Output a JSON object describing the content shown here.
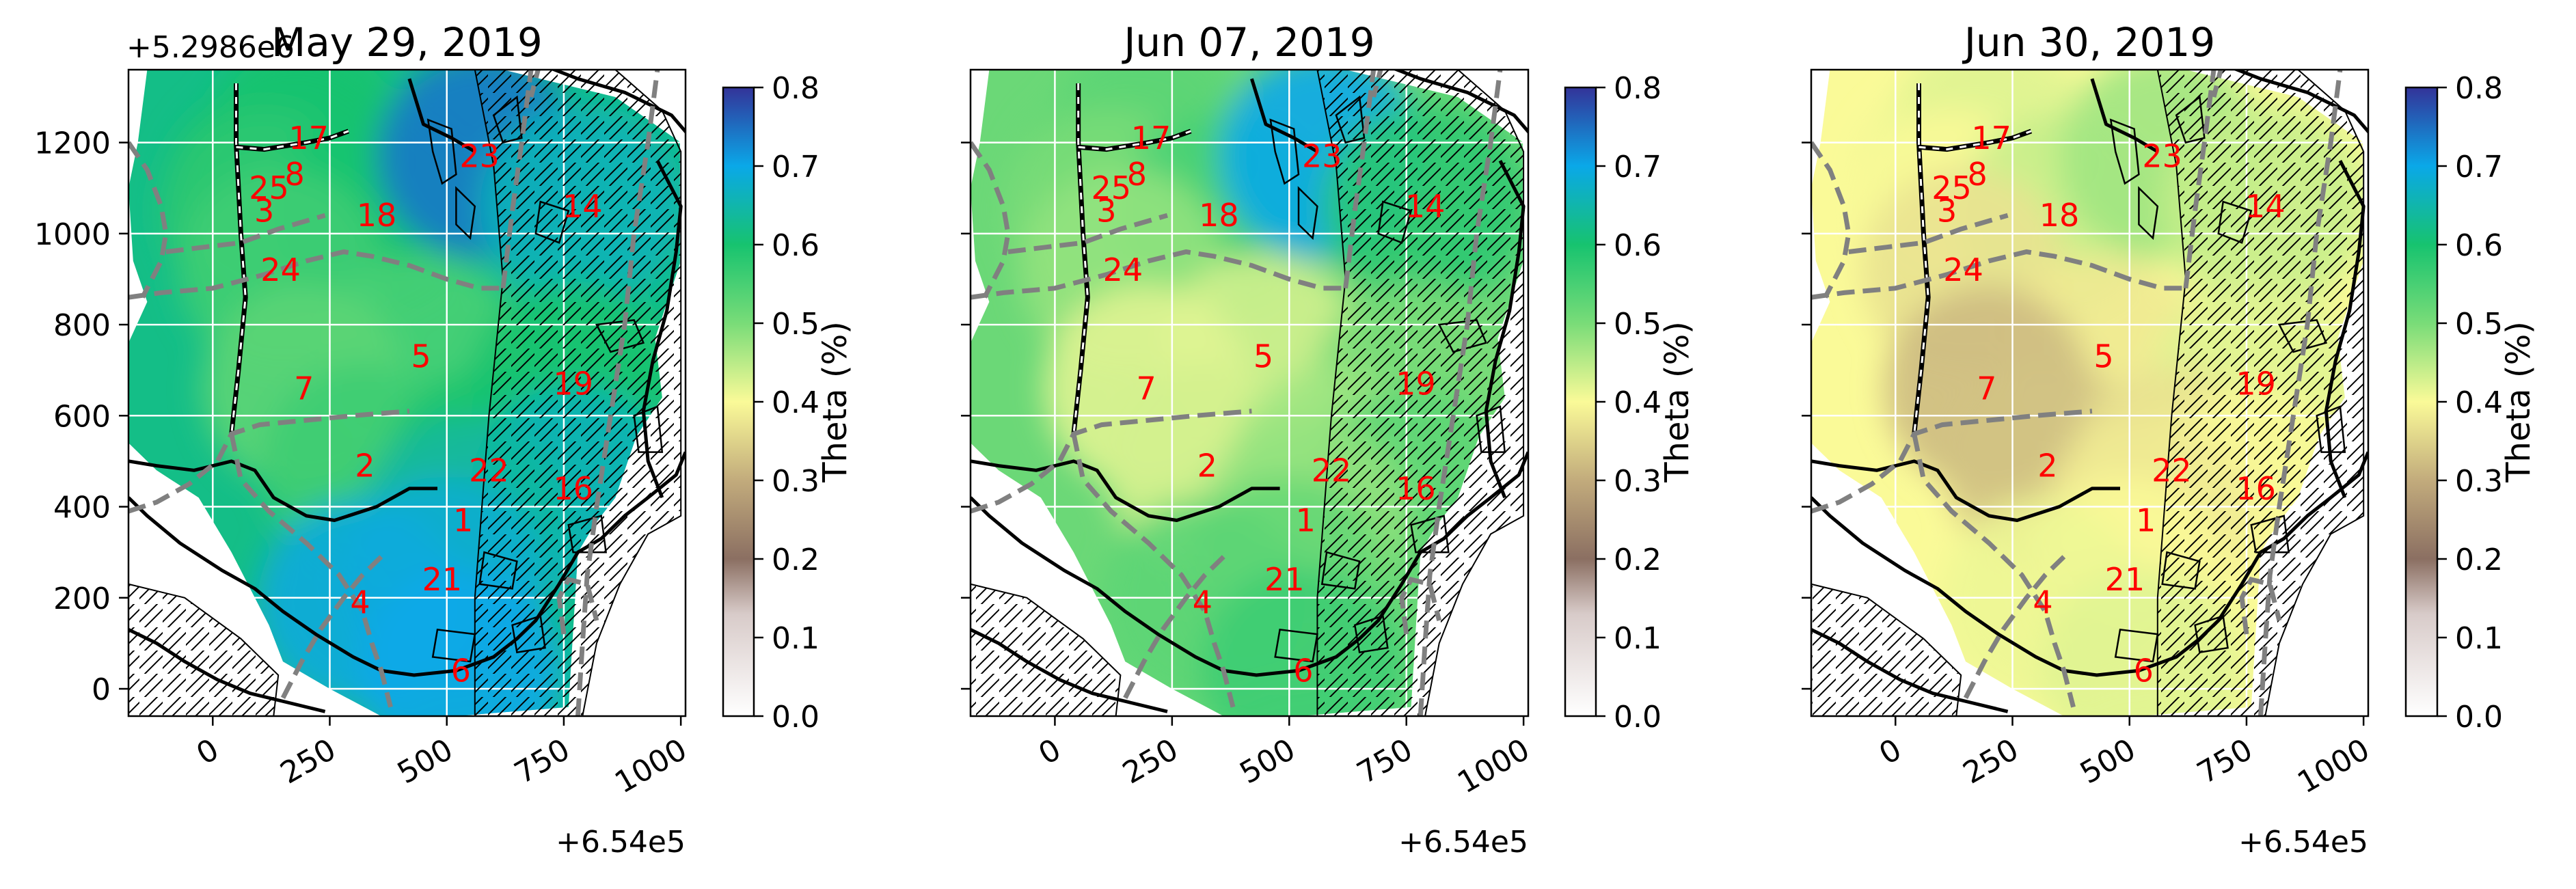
{
  "figure": {
    "offset_y_text": "+5.2986e6",
    "offset_x_text": "+6.54e5"
  },
  "colorbar": {
    "label": "Theta (%)",
    "ticks": [
      "0.0",
      "0.1",
      "0.2",
      "0.3",
      "0.4",
      "0.5",
      "0.6",
      "0.7",
      "0.8"
    ],
    "range": [
      0.0,
      0.8
    ],
    "colormap": "terrain_r",
    "stops": [
      {
        "v": 0.0,
        "color": "#ffffff"
      },
      {
        "v": 0.13,
        "color": "#d8cbc9"
      },
      {
        "v": 0.2,
        "color": "#8b6f62"
      },
      {
        "v": 0.3,
        "color": "#c2ab7c"
      },
      {
        "v": 0.4,
        "color": "#fafa98"
      },
      {
        "v": 0.5,
        "color": "#79dc78"
      },
      {
        "v": 0.6,
        "color": "#17c36f"
      },
      {
        "v": 0.7,
        "color": "#0aa8e8"
      },
      {
        "v": 0.8,
        "color": "#333399"
      }
    ]
  },
  "axes": {
    "x_ticks": [
      "0",
      "250",
      "500",
      "750",
      "1000"
    ],
    "y_ticks": [
      "0",
      "200",
      "400",
      "600",
      "800",
      "1000",
      "1200"
    ],
    "xlim": [
      -180,
      1010
    ],
    "ylim": [
      -60,
      1360
    ],
    "grid": true
  },
  "chart_data": [
    {
      "type": "heatmap",
      "title": "May 29, 2019",
      "sensors": [
        {
          "id": "17",
          "x": 205,
          "y": 1210,
          "theta": 0.6
        },
        {
          "id": "25",
          "x": 120,
          "y": 1100,
          "theta": 0.6
        },
        {
          "id": "8",
          "x": 175,
          "y": 1130,
          "theta": 0.6
        },
        {
          "id": "3",
          "x": 110,
          "y": 1050,
          "theta": 0.58
        },
        {
          "id": "18",
          "x": 350,
          "y": 1040,
          "theta": 0.6
        },
        {
          "id": "23",
          "x": 570,
          "y": 1170,
          "theta": 0.74
        },
        {
          "id": "14",
          "x": 790,
          "y": 1060,
          "theta": 0.66
        },
        {
          "id": "24",
          "x": 145,
          "y": 920,
          "theta": 0.56
        },
        {
          "id": "5",
          "x": 445,
          "y": 730,
          "theta": 0.55
        },
        {
          "id": "7",
          "x": 195,
          "y": 660,
          "theta": 0.53
        },
        {
          "id": "19",
          "x": 770,
          "y": 670,
          "theta": 0.6
        },
        {
          "id": "2",
          "x": 325,
          "y": 490,
          "theta": 0.56
        },
        {
          "id": "22",
          "x": 590,
          "y": 480,
          "theta": 0.6
        },
        {
          "id": "16",
          "x": 770,
          "y": 440,
          "theta": 0.66
        },
        {
          "id": "1",
          "x": 535,
          "y": 370,
          "theta": 0.64
        },
        {
          "id": "21",
          "x": 490,
          "y": 240,
          "theta": 0.68
        },
        {
          "id": "4",
          "x": 315,
          "y": 190,
          "theta": 0.69
        },
        {
          "id": "6",
          "x": 530,
          "y": 40,
          "theta": 0.7
        }
      ]
    },
    {
      "type": "heatmap",
      "title": "Jun 07, 2019",
      "sensors": [
        {
          "id": "17",
          "x": 205,
          "y": 1210,
          "theta": 0.53
        },
        {
          "id": "25",
          "x": 120,
          "y": 1100,
          "theta": 0.52
        },
        {
          "id": "8",
          "x": 175,
          "y": 1130,
          "theta": 0.53
        },
        {
          "id": "3",
          "x": 110,
          "y": 1050,
          "theta": 0.5
        },
        {
          "id": "18",
          "x": 350,
          "y": 1040,
          "theta": 0.55
        },
        {
          "id": "23",
          "x": 570,
          "y": 1170,
          "theta": 0.7
        },
        {
          "id": "14",
          "x": 790,
          "y": 1060,
          "theta": 0.58
        },
        {
          "id": "24",
          "x": 145,
          "y": 920,
          "theta": 0.48
        },
        {
          "id": "5",
          "x": 445,
          "y": 730,
          "theta": 0.43
        },
        {
          "id": "7",
          "x": 195,
          "y": 660,
          "theta": 0.42
        },
        {
          "id": "19",
          "x": 770,
          "y": 670,
          "theta": 0.5
        },
        {
          "id": "2",
          "x": 325,
          "y": 490,
          "theta": 0.43
        },
        {
          "id": "22",
          "x": 590,
          "y": 480,
          "theta": 0.47
        },
        {
          "id": "16",
          "x": 770,
          "y": 440,
          "theta": 0.53
        },
        {
          "id": "1",
          "x": 535,
          "y": 370,
          "theta": 0.48
        },
        {
          "id": "21",
          "x": 490,
          "y": 240,
          "theta": 0.52
        },
        {
          "id": "4",
          "x": 315,
          "y": 190,
          "theta": 0.53
        },
        {
          "id": "6",
          "x": 530,
          "y": 40,
          "theta": 0.56
        }
      ]
    },
    {
      "type": "heatmap",
      "title": "Jun 30, 2019",
      "sensors": [
        {
          "id": "17",
          "x": 205,
          "y": 1210,
          "theta": 0.42
        },
        {
          "id": "25",
          "x": 120,
          "y": 1100,
          "theta": 0.41
        },
        {
          "id": "8",
          "x": 175,
          "y": 1130,
          "theta": 0.42
        },
        {
          "id": "3",
          "x": 110,
          "y": 1050,
          "theta": 0.4
        },
        {
          "id": "18",
          "x": 350,
          "y": 1040,
          "theta": 0.44
        },
        {
          "id": "23",
          "x": 570,
          "y": 1170,
          "theta": 0.47
        },
        {
          "id": "14",
          "x": 790,
          "y": 1060,
          "theta": 0.44
        },
        {
          "id": "24",
          "x": 145,
          "y": 920,
          "theta": 0.37
        },
        {
          "id": "5",
          "x": 445,
          "y": 730,
          "theta": 0.38
        },
        {
          "id": "7",
          "x": 195,
          "y": 660,
          "theta": 0.32
        },
        {
          "id": "19",
          "x": 770,
          "y": 670,
          "theta": 0.42
        },
        {
          "id": "2",
          "x": 325,
          "y": 490,
          "theta": 0.33
        },
        {
          "id": "22",
          "x": 590,
          "y": 480,
          "theta": 0.37
        },
        {
          "id": "16",
          "x": 770,
          "y": 440,
          "theta": 0.4
        },
        {
          "id": "1",
          "x": 535,
          "y": 370,
          "theta": 0.38
        },
        {
          "id": "21",
          "x": 490,
          "y": 240,
          "theta": 0.4
        },
        {
          "id": "4",
          "x": 315,
          "y": 190,
          "theta": 0.41
        },
        {
          "id": "6",
          "x": 530,
          "y": 40,
          "theta": 0.42
        }
      ]
    }
  ]
}
